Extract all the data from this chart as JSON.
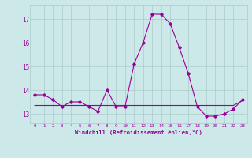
{
  "hours": [
    0,
    1,
    2,
    3,
    4,
    5,
    6,
    7,
    8,
    9,
    10,
    11,
    12,
    13,
    14,
    15,
    16,
    17,
    18,
    19,
    20,
    21,
    22,
    23
  ],
  "windchill": [
    13.8,
    13.8,
    13.6,
    13.3,
    13.5,
    13.5,
    13.3,
    13.1,
    14.0,
    13.3,
    13.3,
    15.1,
    16.0,
    17.2,
    17.2,
    16.8,
    15.8,
    14.7,
    13.3,
    12.9,
    12.9,
    13.0,
    13.2,
    13.6
  ],
  "avg_line": [
    13.35,
    13.35,
    13.35,
    13.35,
    13.35,
    13.35,
    13.35,
    13.35,
    13.35,
    13.35,
    13.35,
    13.35,
    13.35,
    13.35,
    13.35,
    13.35,
    13.35,
    13.35,
    13.35,
    13.35,
    13.35,
    13.35,
    13.35,
    13.55
  ],
  "line_color": "#990099",
  "bg_color": "#cce8e8",
  "grid_color": "#aacccc",
  "text_color": "#990099",
  "xlabel": "Windchill (Refroidissement éolien,°C)",
  "yticks": [
    13,
    14,
    15,
    16,
    17
  ],
  "xtick_labels": [
    "0",
    "1",
    "2",
    "3",
    "4",
    "5",
    "6",
    "7",
    "8",
    "9",
    "10",
    "11",
    "12",
    "13",
    "14",
    "15",
    "16",
    "17",
    "18",
    "19",
    "20",
    "21",
    "22",
    "23"
  ],
  "ylim": [
    12.6,
    17.6
  ],
  "xlim": [
    -0.5,
    23.5
  ]
}
